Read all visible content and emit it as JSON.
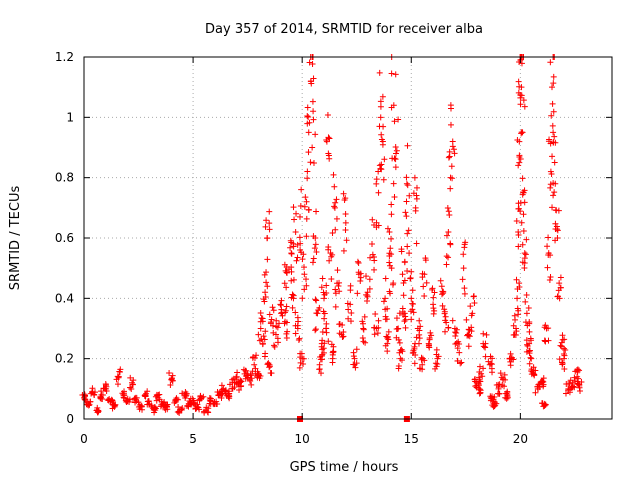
{
  "chart_data": {
    "type": "scatter",
    "title": "Day 357 of 2014, SRMTID for receiver alba",
    "xlabel": "GPS time / hours",
    "ylabel": "SRMTID / TECUs",
    "xlim": [
      0,
      24.2
    ],
    "ylim": [
      0,
      1.2
    ],
    "xticks": [
      0,
      5,
      10,
      15,
      20
    ],
    "yticks": [
      0,
      0.2,
      0.4,
      0.6,
      0.8,
      1,
      1.2
    ],
    "grid": true,
    "marker": "+",
    "marker_color": "#ff0000",
    "special_points": [
      {
        "x": 9.9,
        "y": 0.0
      },
      {
        "x": 14.8,
        "y": 0.0
      }
    ],
    "series": [
      {
        "name": "SRMTID",
        "segments": [
          {
            "x_start": 0.0,
            "x_end": 2.0,
            "points": [
              [
                0.0,
                0.07
              ],
              [
                0.2,
                0.05
              ],
              [
                0.4,
                0.09
              ],
              [
                0.6,
                0.03
              ],
              [
                0.8,
                0.08
              ],
              [
                1.0,
                0.1
              ],
              [
                1.2,
                0.06
              ],
              [
                1.4,
                0.04
              ],
              [
                1.6,
                0.14
              ],
              [
                1.8,
                0.08
              ],
              [
                2.0,
                0.06
              ]
            ]
          },
          {
            "x_start": 2.0,
            "x_end": 6.4,
            "points": [
              [
                2.2,
                0.12
              ],
              [
                2.4,
                0.06
              ],
              [
                2.6,
                0.04
              ],
              [
                2.8,
                0.08
              ],
              [
                3.0,
                0.05
              ],
              [
                3.2,
                0.03
              ],
              [
                3.4,
                0.07
              ],
              [
                3.6,
                0.05
              ],
              [
                3.8,
                0.04
              ],
              [
                4.0,
                0.13
              ],
              [
                4.2,
                0.06
              ],
              [
                4.4,
                0.03
              ],
              [
                4.6,
                0.08
              ],
              [
                4.8,
                0.05
              ],
              [
                5.0,
                0.06
              ],
              [
                5.2,
                0.04
              ],
              [
                5.4,
                0.07
              ],
              [
                5.6,
                0.03
              ],
              [
                5.8,
                0.06
              ],
              [
                6.0,
                0.05
              ],
              [
                6.2,
                0.08
              ],
              [
                6.4,
                0.1
              ]
            ]
          },
          {
            "x_start": 6.5,
            "x_end": 8.0,
            "points": [
              [
                6.6,
                0.08
              ],
              [
                6.8,
                0.12
              ],
              [
                7.0,
                0.14
              ],
              [
                7.2,
                0.11
              ],
              [
                7.4,
                0.16
              ],
              [
                7.6,
                0.13
              ],
              [
                7.8,
                0.18
              ],
              [
                8.0,
                0.15
              ]
            ]
          },
          {
            "x_start": 8.0,
            "x_end": 9.6,
            "points": [
              [
                8.1,
                0.3
              ],
              [
                8.2,
                0.25
              ],
              [
                8.3,
                0.42
              ],
              [
                8.4,
                0.6
              ],
              [
                8.5,
                0.18
              ],
              [
                8.6,
                0.33
              ],
              [
                8.8,
                0.28
              ],
              [
                9.0,
                0.38
              ],
              [
                9.2,
                0.45
              ],
              [
                9.3,
                0.32
              ],
              [
                9.5,
                0.55
              ],
              [
                9.6,
                0.4
              ]
            ]
          },
          {
            "x_start": 9.6,
            "x_end": 11.0,
            "points": [
              [
                9.7,
                0.62
              ],
              [
                9.8,
                0.3
              ],
              [
                9.9,
                0.67
              ],
              [
                10.0,
                0.2
              ],
              [
                10.1,
                0.48
              ],
              [
                10.2,
                0.72
              ],
              [
                10.3,
                0.95
              ],
              [
                10.4,
                1.12
              ],
              [
                10.5,
                1.02
              ],
              [
                10.6,
                0.6
              ],
              [
                10.7,
                0.35
              ],
              [
                10.8,
                0.18
              ],
              [
                10.9,
                0.25
              ],
              [
                11.0,
                0.4
              ]
            ]
          },
          {
            "x_start": 11.0,
            "x_end": 13.0,
            "points": [
              [
                11.1,
                0.3
              ],
              [
                11.2,
                0.88
              ],
              [
                11.3,
                0.55
              ],
              [
                11.4,
                0.22
              ],
              [
                11.5,
                0.7
              ],
              [
                11.6,
                0.45
              ],
              [
                11.8,
                0.28
              ],
              [
                12.0,
                0.65
              ],
              [
                12.2,
                0.38
              ],
              [
                12.4,
                0.2
              ],
              [
                12.6,
                0.48
              ],
              [
                12.8,
                0.3
              ],
              [
                13.0,
                0.42
              ]
            ]
          },
          {
            "x_start": 13.0,
            "x_end": 15.0,
            "points": [
              [
                13.2,
                0.58
              ],
              [
                13.4,
                0.3
              ],
              [
                13.5,
                0.75
              ],
              [
                13.6,
                1.0
              ],
              [
                13.7,
                0.92
              ],
              [
                13.8,
                0.4
              ],
              [
                13.9,
                0.25
              ],
              [
                14.0,
                0.62
              ],
              [
                14.1,
                0.5
              ],
              [
                14.2,
                1.04
              ],
              [
                14.3,
                0.88
              ],
              [
                14.4,
                0.3
              ],
              [
                14.5,
                0.2
              ],
              [
                14.6,
                0.48
              ],
              [
                14.7,
                0.35
              ],
              [
                14.8,
                0.78
              ],
              [
                14.9,
                0.55
              ],
              [
                15.0,
                0.4
              ]
            ]
          },
          {
            "x_start": 15.0,
            "x_end": 17.9,
            "points": [
              [
                15.1,
                0.22
              ],
              [
                15.2,
                0.7
              ],
              [
                15.3,
                0.3
              ],
              [
                15.5,
                0.18
              ],
              [
                15.6,
                0.48
              ],
              [
                15.8,
                0.25
              ],
              [
                16.0,
                0.38
              ],
              [
                16.2,
                0.2
              ],
              [
                16.4,
                0.44
              ],
              [
                16.6,
                0.32
              ],
              [
                16.7,
                0.62
              ],
              [
                16.8,
                0.8
              ],
              [
                16.9,
                0.92
              ],
              [
                17.0,
                0.3
              ],
              [
                17.2,
                0.22
              ],
              [
                17.4,
                0.5
              ],
              [
                17.6,
                0.28
              ],
              [
                17.8,
                0.35
              ]
            ]
          },
          {
            "x_start": 17.9,
            "x_end": 19.8,
            "points": [
              [
                18.0,
                0.12
              ],
              [
                18.1,
                0.1
              ],
              [
                18.2,
                0.15
              ],
              [
                18.4,
                0.25
              ],
              [
                18.6,
                0.18
              ],
              [
                18.7,
                0.07
              ],
              [
                18.8,
                0.05
              ],
              [
                19.0,
                0.1
              ],
              [
                19.2,
                0.13
              ],
              [
                19.4,
                0.08
              ],
              [
                19.6,
                0.2
              ],
              [
                19.8,
                0.3
              ]
            ]
          },
          {
            "x_start": 19.8,
            "x_end": 21.0,
            "points": [
              [
                19.85,
                0.4
              ],
              [
                19.9,
                0.62
              ],
              [
                19.95,
                0.85
              ],
              [
                20.0,
                1.19
              ],
              [
                20.05,
                1.1
              ],
              [
                20.1,
                0.95
              ],
              [
                20.15,
                0.75
              ],
              [
                20.2,
                0.55
              ],
              [
                20.3,
                0.35
              ],
              [
                20.4,
                0.25
              ],
              [
                20.5,
                0.2
              ],
              [
                20.6,
                0.15
              ],
              [
                20.8,
                0.1
              ],
              [
                21.0,
                0.12
              ]
            ]
          },
          {
            "x_start": 21.0,
            "x_end": 22.7,
            "points": [
              [
                21.1,
                0.05
              ],
              [
                21.2,
                0.3
              ],
              [
                21.3,
                0.55
              ],
              [
                21.4,
                0.82
              ],
              [
                21.45,
                1.1
              ],
              [
                21.5,
                0.95
              ],
              [
                21.6,
                0.78
              ],
              [
                21.7,
                0.6
              ],
              [
                21.8,
                0.4
              ],
              [
                21.9,
                0.24
              ],
              [
                22.0,
                0.2
              ],
              [
                22.2,
                0.1
              ],
              [
                22.4,
                0.12
              ],
              [
                22.6,
                0.14
              ],
              [
                22.7,
                0.11
              ]
            ]
          }
        ]
      }
    ]
  }
}
